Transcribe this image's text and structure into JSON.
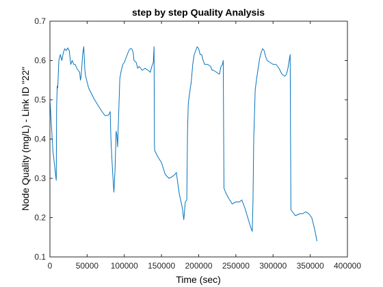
{
  "chart_data": {
    "type": "line",
    "title": "step by step Quality Analysis",
    "xlabel": "Time (sec)",
    "ylabel": "Node Quality (mg/L) - Link ID \"22\"",
    "xlim": [
      0,
      400000
    ],
    "ylim": [
      0.1,
      0.7
    ],
    "xticks": [
      0,
      50000,
      100000,
      150000,
      200000,
      250000,
      300000,
      350000,
      400000
    ],
    "xtick_labels": [
      "0",
      "50000",
      "100000",
      "150000",
      "200000",
      "250000",
      "300000",
      "350000",
      "400000"
    ],
    "yticks": [
      0.1,
      0.2,
      0.3,
      0.4,
      0.5,
      0.6,
      0.7
    ],
    "ytick_labels": [
      "0.1",
      "0.2",
      "0.3",
      "0.4",
      "0.5",
      "0.6",
      "0.7"
    ],
    "grid": false,
    "box": true,
    "series": [
      {
        "color": "#0072BD",
        "points": [
          [
            0,
            0.5
          ],
          [
            4000,
            0.37
          ],
          [
            8500,
            0.295
          ],
          [
            9000,
            0.48
          ],
          [
            9800,
            0.535
          ],
          [
            10500,
            0.53
          ],
          [
            12000,
            0.6
          ],
          [
            14000,
            0.615
          ],
          [
            16000,
            0.6
          ],
          [
            18000,
            0.62
          ],
          [
            20000,
            0.63
          ],
          [
            22000,
            0.625
          ],
          [
            24000,
            0.632
          ],
          [
            26000,
            0.625
          ],
          [
            28000,
            0.59
          ],
          [
            30000,
            0.6
          ],
          [
            32000,
            0.59
          ],
          [
            34000,
            0.59
          ],
          [
            36000,
            0.58
          ],
          [
            38000,
            0.575
          ],
          [
            40000,
            0.57
          ],
          [
            41000,
            0.55
          ],
          [
            42000,
            0.56
          ],
          [
            44000,
            0.615
          ],
          [
            45500,
            0.635
          ],
          [
            47000,
            0.575
          ],
          [
            48000,
            0.56
          ],
          [
            52000,
            0.53
          ],
          [
            60000,
            0.5
          ],
          [
            70000,
            0.47
          ],
          [
            74000,
            0.46
          ],
          [
            78000,
            0.46
          ],
          [
            80000,
            0.465
          ],
          [
            81000,
            0.47
          ],
          [
            82000,
            0.4
          ],
          [
            84000,
            0.325
          ],
          [
            85500,
            0.28
          ],
          [
            86000,
            0.265
          ],
          [
            87500,
            0.32
          ],
          [
            89000,
            0.42
          ],
          [
            90000,
            0.41
          ],
          [
            91000,
            0.38
          ],
          [
            92000,
            0.44
          ],
          [
            94000,
            0.555
          ],
          [
            96000,
            0.575
          ],
          [
            98000,
            0.59
          ],
          [
            100000,
            0.595
          ],
          [
            102000,
            0.605
          ],
          [
            104000,
            0.615
          ],
          [
            106000,
            0.625
          ],
          [
            108000,
            0.63
          ],
          [
            110000,
            0.63
          ],
          [
            112000,
            0.62
          ],
          [
            113000,
            0.6
          ],
          [
            116000,
            0.595
          ],
          [
            118000,
            0.58
          ],
          [
            120000,
            0.585
          ],
          [
            124000,
            0.575
          ],
          [
            128000,
            0.58
          ],
          [
            132000,
            0.575
          ],
          [
            135000,
            0.57
          ],
          [
            137000,
            0.585
          ],
          [
            139000,
            0.595
          ],
          [
            140000,
            0.635
          ],
          [
            140500,
            0.385
          ],
          [
            141000,
            0.37
          ],
          [
            145000,
            0.355
          ],
          [
            150000,
            0.34
          ],
          [
            155000,
            0.31
          ],
          [
            160000,
            0.3
          ],
          [
            165000,
            0.305
          ],
          [
            168000,
            0.31
          ],
          [
            170000,
            0.315
          ],
          [
            171000,
            0.3
          ],
          [
            174000,
            0.26
          ],
          [
            178000,
            0.225
          ],
          [
            180000,
            0.195
          ],
          [
            182000,
            0.24
          ],
          [
            184000,
            0.245
          ],
          [
            185000,
            0.42
          ],
          [
            186000,
            0.49
          ],
          [
            188000,
            0.52
          ],
          [
            190000,
            0.545
          ],
          [
            192000,
            0.59
          ],
          [
            194000,
            0.615
          ],
          [
            196000,
            0.625
          ],
          [
            198000,
            0.635
          ],
          [
            200000,
            0.63
          ],
          [
            202000,
            0.615
          ],
          [
            204000,
            0.615
          ],
          [
            206000,
            0.6
          ],
          [
            208000,
            0.59
          ],
          [
            212000,
            0.59
          ],
          [
            216000,
            0.585
          ],
          [
            218000,
            0.575
          ],
          [
            220000,
            0.575
          ],
          [
            224000,
            0.57
          ],
          [
            228000,
            0.565
          ],
          [
            230000,
            0.585
          ],
          [
            232000,
            0.59
          ],
          [
            233000,
            0.6
          ],
          [
            234000,
            0.275
          ],
          [
            236000,
            0.265
          ],
          [
            240000,
            0.25
          ],
          [
            245000,
            0.235
          ],
          [
            250000,
            0.24
          ],
          [
            255000,
            0.24
          ],
          [
            258000,
            0.245
          ],
          [
            259000,
            0.24
          ],
          [
            262000,
            0.225
          ],
          [
            266000,
            0.2
          ],
          [
            270000,
            0.175
          ],
          [
            272000,
            0.165
          ],
          [
            273000,
            0.24
          ],
          [
            274000,
            0.4
          ],
          [
            276000,
            0.525
          ],
          [
            278000,
            0.555
          ],
          [
            280000,
            0.58
          ],
          [
            282000,
            0.605
          ],
          [
            284000,
            0.62
          ],
          [
            286000,
            0.63
          ],
          [
            288000,
            0.625
          ],
          [
            290000,
            0.61
          ],
          [
            292000,
            0.6
          ],
          [
            296000,
            0.595
          ],
          [
            300000,
            0.59
          ],
          [
            304000,
            0.59
          ],
          [
            308000,
            0.58
          ],
          [
            312000,
            0.565
          ],
          [
            316000,
            0.56
          ],
          [
            318000,
            0.565
          ],
          [
            320000,
            0.58
          ],
          [
            323000,
            0.615
          ],
          [
            324000,
            0.22
          ],
          [
            330000,
            0.205
          ],
          [
            336000,
            0.21
          ],
          [
            340000,
            0.21
          ],
          [
            344000,
            0.215
          ],
          [
            348000,
            0.21
          ],
          [
            350000,
            0.205
          ],
          [
            352000,
            0.2
          ],
          [
            356000,
            0.17
          ],
          [
            359000,
            0.14
          ]
        ]
      }
    ]
  }
}
